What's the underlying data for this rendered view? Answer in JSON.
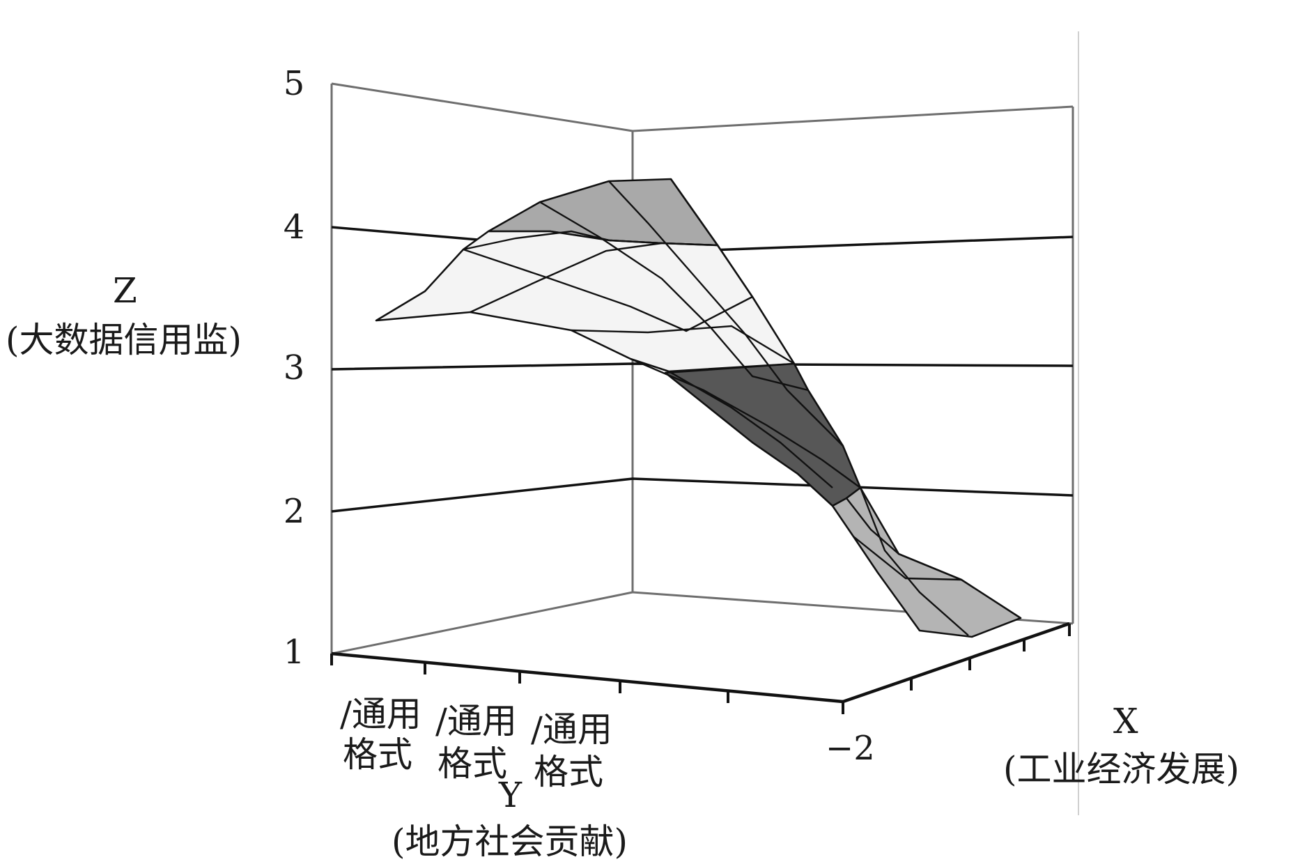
{
  "chart_data": {
    "type": "surface3d",
    "title": "",
    "xlabel": "X\n(工业经济发展)",
    "xlabel_line1": "X",
    "xlabel_line2": "(工业经济发展)",
    "ylabel_line1": "Y",
    "ylabel_line2": "(地方社会贡献)",
    "zlabel_line1": "Z",
    "zlabel_line2": "(大数据信用监)",
    "z_ticks": [
      "5",
      "4",
      "3",
      "2",
      "1"
    ],
    "zlim": [
      1,
      5
    ],
    "x_ticks": [
      "−2"
    ],
    "y_ticks": [
      {
        "line1": "/通用",
        "line2": "格式"
      },
      {
        "line1": "/通用",
        "line2": "格式"
      },
      {
        "line1": "/通用",
        "line2": "格式"
      }
    ],
    "grid": true,
    "colors": {
      "band_light": "#f4f4f4",
      "band_mid": "#a9a9a9",
      "band_dark": "#575757",
      "band_low": "#b4b4b4"
    }
  }
}
